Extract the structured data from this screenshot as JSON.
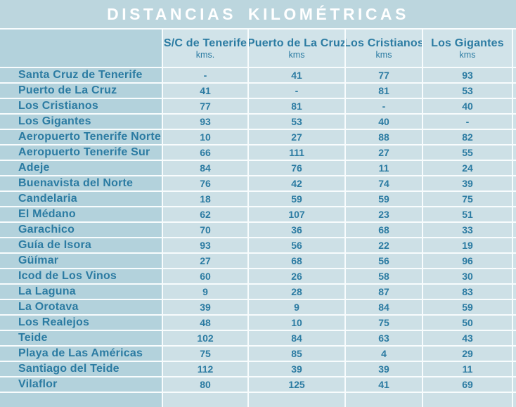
{
  "title": "DISTANCIAS KILOMÉTRICAS",
  "colors": {
    "title_bar": "#bcd6de",
    "name_cell": "#b3d2dc",
    "header_cell": "#d1e3e9",
    "value_cell": "#cde0e6",
    "text": "#2b7ba2",
    "title_text": "#ffffff",
    "line": "#f8fcfd"
  },
  "columns": [
    {
      "label": "S/C de Tenerife",
      "unit": "kms."
    },
    {
      "label": "Puerto de La Cruz",
      "unit": "kms"
    },
    {
      "label": "Los Cristianos",
      "unit": "kms"
    },
    {
      "label": "Los Gigantes",
      "unit": "kms"
    }
  ],
  "rows": [
    {
      "name": "Santa Cruz de Tenerife",
      "values": [
        "-",
        "41",
        "77",
        "93"
      ]
    },
    {
      "name": "Puerto de La Cruz",
      "values": [
        "41",
        "-",
        "81",
        "53"
      ]
    },
    {
      "name": "Los Cristianos",
      "values": [
        "77",
        "81",
        "-",
        "40"
      ]
    },
    {
      "name": "Los Gigantes",
      "values": [
        "93",
        "53",
        "40",
        "-"
      ]
    },
    {
      "name": "Aeropuerto Tenerife Norte",
      "values": [
        "10",
        "27",
        "88",
        "82"
      ]
    },
    {
      "name": "Aeropuerto Tenerife Sur",
      "values": [
        "66",
        "111",
        "27",
        "55"
      ]
    },
    {
      "name": "Adeje",
      "values": [
        "84",
        "76",
        "11",
        "24"
      ]
    },
    {
      "name": "Buenavista del Norte",
      "values": [
        "76",
        "42",
        "74",
        "39"
      ]
    },
    {
      "name": "Candelaria",
      "values": [
        "18",
        "59",
        "59",
        "75"
      ]
    },
    {
      "name": "El Médano",
      "values": [
        "62",
        "107",
        "23",
        "51"
      ]
    },
    {
      "name": "Garachico",
      "values": [
        "70",
        "36",
        "68",
        "33"
      ]
    },
    {
      "name": "Guía de Isora",
      "values": [
        "93",
        "56",
        "22",
        "19"
      ]
    },
    {
      "name": "Güímar",
      "values": [
        "27",
        "68",
        "56",
        "96"
      ]
    },
    {
      "name": "Icod de Los Vinos",
      "values": [
        "60",
        "26",
        "58",
        "30"
      ]
    },
    {
      "name": "La Laguna",
      "values": [
        "9",
        "28",
        "87",
        "83"
      ]
    },
    {
      "name": "La Orotava",
      "values": [
        "39",
        "9",
        "84",
        "59"
      ]
    },
    {
      "name": "Los Realejos",
      "values": [
        "48",
        "10",
        "75",
        "50"
      ]
    },
    {
      "name": "Teide",
      "values": [
        "102",
        "84",
        "63",
        "43"
      ]
    },
    {
      "name": "Playa de Las Américas",
      "values": [
        "75",
        "85",
        "4",
        "29"
      ]
    },
    {
      "name": "Santiago del Teide",
      "values": [
        "112",
        "39",
        "39",
        "11"
      ]
    },
    {
      "name": "Vilaflor",
      "values": [
        "80",
        "125",
        "41",
        "69"
      ]
    }
  ]
}
